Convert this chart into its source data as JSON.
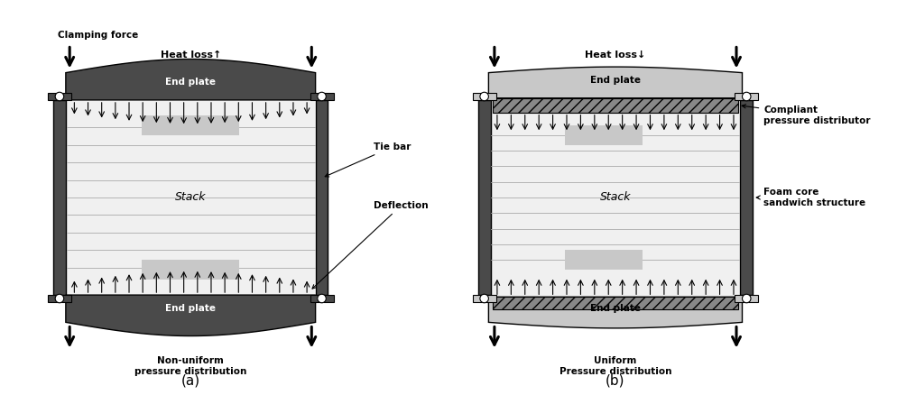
{
  "fig_width": 9.94,
  "fig_height": 4.38,
  "bg_color": "#ffffff",
  "dark_gray": "#4a4a4a",
  "mid_gray": "#808080",
  "light_gray": "#c8c8c8",
  "lighter_gray": "#e0e0e0",
  "stack_bg": "#f0f0f0",
  "label_a": "(a)",
  "label_b": "(b)",
  "text_clamping": "Clamping force",
  "text_heat_a": "Heat loss↑",
  "text_heat_b": "Heat loss↓",
  "text_end_plate": "End plate",
  "text_stack": "Stack",
  "text_tie_bar": "Tie bar",
  "text_deflection": "Deflection",
  "text_nonuniform": "Non-uniform\npressure distribution",
  "text_uniform": "Uniform\nPressure distribution",
  "text_compliant": "Compliant\npressure distributor",
  "text_foam": "Foam core\nsandwich structure"
}
